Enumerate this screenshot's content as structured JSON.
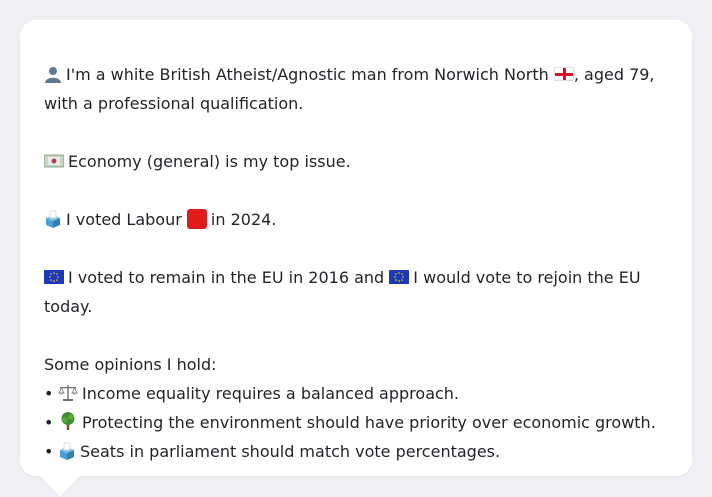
{
  "bio": {
    "line1_a": "I'm a white British Atheist/Agnostic man from Norwich North",
    "line1_b": ", aged 79,",
    "line2": "with a professional qualification."
  },
  "issue": {
    "text": "Economy (general) is my top issue."
  },
  "vote": {
    "text_a": "I voted Labour",
    "text_b": "in 2024."
  },
  "eu": {
    "text_a": "I voted to remain in the EU in 2016 and",
    "text_b": "I would vote to rejoin the EU",
    "text_c": "today."
  },
  "opinions": {
    "heading": "Some opinions I hold:",
    "bullet": "•",
    "items": [
      {
        "icon": "scales-icon",
        "text": "Income equality requires a balanced approach."
      },
      {
        "icon": "tree-icon",
        "text": "Protecting the environment should have priority over economic growth."
      },
      {
        "icon": "ballot-box-icon",
        "text": "Seats in parliament should match vote percentages."
      }
    ]
  },
  "colors": {
    "background": "#eef0f3",
    "card": "#ffffff",
    "text": "#1f2328",
    "labour_red": "#e01b1b",
    "eu_blue": "#1c39bb",
    "england_red": "#cf142b"
  }
}
